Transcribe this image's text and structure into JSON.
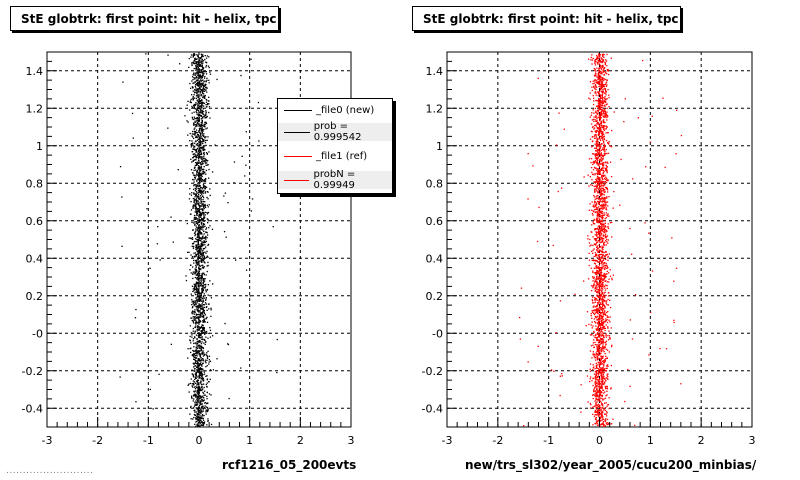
{
  "panels": [
    {
      "title": "StE globtrk: first point: hit - helix, tpc",
      "xcaption": "rcf1216_05_200evts",
      "color": "#000000"
    },
    {
      "title": "StE globtrk: first point: hit - helix, tpc",
      "xcaption": "new/trs_sl302/year_2005/cucu200_minbias/",
      "color": "#ff0000"
    }
  ],
  "legend": {
    "entries": [
      {
        "label": "_file0 (new)",
        "color": "#000000"
      },
      {
        "label": "prob = 0.999542",
        "color": "#000000"
      },
      {
        "label": "_file1 (ref)",
        "color": "#ff0000"
      },
      {
        "label": "probN = 0.99949",
        "color": "#ff0000"
      }
    ]
  },
  "footer": "..........................",
  "chart_data": [
    {
      "type": "scatter",
      "title": "StE globtrk: first point: hit - helix, tpc",
      "xlabel": "rcf1216_05_200evts",
      "ylabel": "",
      "xlim": [
        -3,
        3
      ],
      "ylim": [
        -0.5,
        1.5
      ],
      "x_ticks": [
        "-3",
        "-2",
        "-1",
        "0",
        "1",
        "2",
        "3"
      ],
      "y_ticks": [
        "-0.4",
        "-0.2",
        "-0",
        "0.2",
        "0.4",
        "0.6",
        "0.8",
        "1",
        "1.2",
        "1.4"
      ],
      "grid": true,
      "series": [
        {
          "name": "_file0 (new)",
          "color": "#000000",
          "distribution": "dense vertical band",
          "x_center": 0.0,
          "x_halfwidth": 0.15,
          "y_range": [
            -0.5,
            1.5
          ]
        }
      ]
    },
    {
      "type": "scatter",
      "title": "StE globtrk: first point: hit - helix, tpc",
      "xlabel": "new/trs_sl302/year_2005/cucu200_minbias/",
      "ylabel": "",
      "xlim": [
        -3,
        3
      ],
      "ylim": [
        -0.5,
        1.5
      ],
      "x_ticks": [
        "-3",
        "-2",
        "-1",
        "0",
        "1",
        "2",
        "3"
      ],
      "y_ticks": [
        "-0.4",
        "-0.2",
        "-0",
        "0.2",
        "0.4",
        "0.6",
        "0.8",
        "1",
        "1.2",
        "1.4"
      ],
      "grid": true,
      "series": [
        {
          "name": "_file1 (ref)",
          "color": "#ff0000",
          "distribution": "dense vertical band",
          "x_center": 0.0,
          "x_halfwidth": 0.15,
          "y_range": [
            -0.5,
            1.5
          ]
        }
      ]
    }
  ]
}
